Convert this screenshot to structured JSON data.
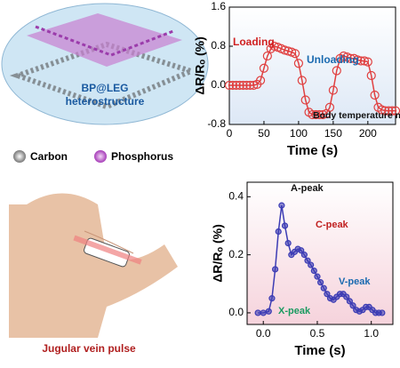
{
  "labels": {
    "structure": [
      "BP@LEG",
      "heterostructure"
    ],
    "legend": [
      "Carbon",
      "Phosphorus"
    ],
    "caption": "Jugular vein pulse"
  },
  "chart_data": [
    {
      "type": "line",
      "xlabel": "Time (s)",
      "ylabel": "ΔR/Rₒ (%)",
      "color": "#e04040",
      "annotations": [
        "Loading",
        "Unloading",
        "Body temperature measurement"
      ],
      "xlim": [
        0,
        240
      ],
      "xticks": [
        0,
        50,
        100,
        150,
        200
      ],
      "ylim": [
        -0.8,
        1.6
      ],
      "yticks": [
        -0.8,
        {
          "value": 0,
          "label": "0.0"
        },
        0.8,
        1.6
      ],
      "x": [
        0,
        5,
        10,
        15,
        20,
        25,
        30,
        35,
        40,
        45,
        50,
        55,
        60,
        65,
        70,
        75,
        80,
        85,
        90,
        95,
        100,
        105,
        110,
        115,
        120,
        125,
        130,
        135,
        140,
        145,
        150,
        155,
        160,
        165,
        170,
        175,
        180,
        185,
        190,
        195,
        200,
        205,
        210,
        215,
        220,
        225,
        230,
        235,
        240
      ],
      "values": [
        0,
        0,
        0,
        0,
        0,
        0,
        0,
        0,
        0.02,
        0.1,
        0.35,
        0.6,
        0.75,
        0.8,
        0.78,
        0.75,
        0.72,
        0.7,
        0.68,
        0.65,
        0.45,
        0.1,
        -0.3,
        -0.55,
        -0.6,
        -0.6,
        -0.6,
        -0.6,
        -0.58,
        -0.45,
        -0.1,
        0.3,
        0.55,
        0.6,
        0.58,
        0.55,
        0.55,
        0.52,
        0.5,
        0.5,
        0.48,
        0.2,
        -0.2,
        -0.45,
        -0.5,
        -0.52,
        -0.52,
        -0.52,
        -0.52
      ]
    },
    {
      "type": "line",
      "xlabel": "Time (s)",
      "ylabel": "ΔR/Rₒ (%)",
      "color": "#3c3cb4",
      "annotations": [
        "A-peak",
        "C-peak",
        "V-peak",
        "X-peak"
      ],
      "xlim": [
        -0.15,
        1.2
      ],
      "xticks": [
        {
          "value": 0,
          "label": "0.0"
        },
        0.5,
        {
          "value": 1,
          "label": "1.0"
        }
      ],
      "ylim": [
        -0.04,
        0.45
      ],
      "yticks": [
        {
          "value": 0,
          "label": "0.0"
        },
        0.2,
        0.4
      ],
      "x": [
        -0.05,
        0,
        0.05,
        0.08,
        0.11,
        0.14,
        0.17,
        0.2,
        0.23,
        0.26,
        0.29,
        0.32,
        0.35,
        0.38,
        0.41,
        0.44,
        0.47,
        0.5,
        0.53,
        0.56,
        0.59,
        0.62,
        0.65,
        0.68,
        0.71,
        0.74,
        0.77,
        0.8,
        0.83,
        0.86,
        0.89,
        0.92,
        0.95,
        0.98,
        1.01,
        1.04,
        1.07,
        1.1
      ],
      "values": [
        0,
        0,
        0.005,
        0.05,
        0.15,
        0.28,
        0.37,
        0.3,
        0.24,
        0.2,
        0.21,
        0.22,
        0.215,
        0.2,
        0.18,
        0.165,
        0.145,
        0.125,
        0.105,
        0.085,
        0.065,
        0.05,
        0.045,
        0.055,
        0.065,
        0.065,
        0.055,
        0.04,
        0.025,
        0.01,
        0.005,
        0.01,
        0.02,
        0.02,
        0.01,
        0,
        0,
        0
      ]
    }
  ]
}
